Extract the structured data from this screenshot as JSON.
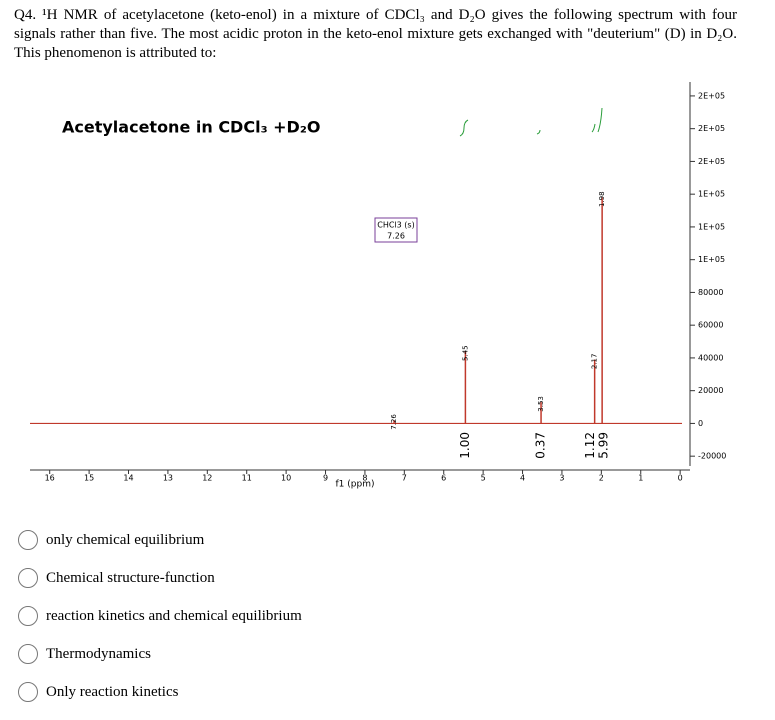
{
  "question": "Q4. ¹H NMR of acetylacetone (keto-enol) in a mixture of CDCl₃ and D₂O gives the following spectrum with four signals rather than five. The most acidic proton in the keto-enol mixture gets exchanged with \"deuterium\" (D) in D₂O. This phenomenon is attributed to:",
  "chart_data": {
    "type": "nmr",
    "title": "Acetylacetone in CDCl₃ +D₂O",
    "xlabel": "f1 (ppm)",
    "annotation": [
      "CHCl3 (s)",
      "7.26"
    ],
    "x": [
      7.26,
      5.45,
      3.53,
      2.17,
      1.98
    ],
    "values": [
      2000,
      44000,
      13000,
      39000,
      138000
    ],
    "integrals": [
      null,
      {
        "value": 1,
        "label": "1.00"
      },
      {
        "value": 0.37,
        "label": "0.37"
      },
      {
        "value": 1.12,
        "label": "1.12"
      },
      {
        "value": 5.99,
        "label": "5.99"
      }
    ],
    "color": "#c0392b",
    "xlim": [
      16.5,
      -0.25
    ],
    "xticks": [
      16,
      15,
      14,
      13,
      12,
      11,
      10,
      9,
      8,
      7,
      6,
      5,
      4,
      3,
      2,
      1,
      0
    ],
    "ylim": [
      -26000,
      208500
    ],
    "yticks": [
      {
        "value": 200000,
        "label": "2E+05"
      },
      {
        "value": 180000,
        "label": "2E+05"
      },
      {
        "value": 160000,
        "label": "2E+05"
      },
      {
        "value": 140000,
        "label": "1E+05"
      },
      {
        "value": 120000,
        "label": "1E+05"
      },
      {
        "value": 100000,
        "label": "1E+05"
      },
      80000,
      60000,
      40000,
      20000,
      0,
      -20000
    ]
  },
  "options": [
    "only chemical equilibrium",
    "Chemical structure-function",
    "reaction kinetics and chemical equilibrium",
    "Thermodynamics",
    "Only reaction kinetics"
  ]
}
